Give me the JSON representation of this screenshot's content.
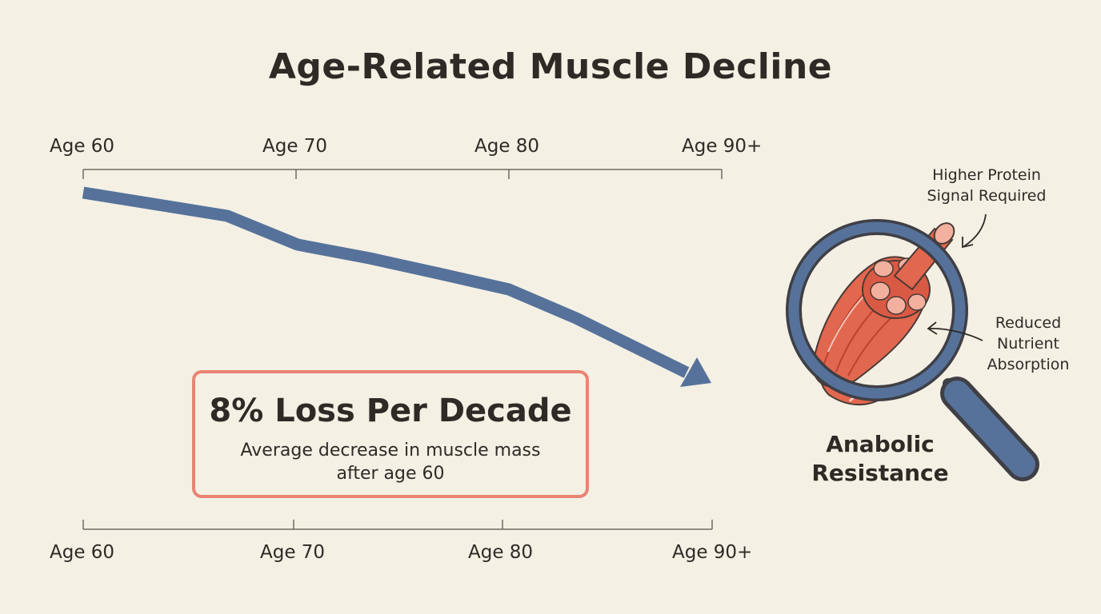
{
  "title": "Age-Related Muscle Decline",
  "top_axis": {
    "labels": [
      "Age 60",
      "Age 70",
      "Age 80",
      "Age 90+"
    ]
  },
  "bottom_axis": {
    "labels": [
      "Age 60",
      "Age 70",
      "Age 80",
      "Age 90+"
    ]
  },
  "trend": {
    "description_points": [
      {
        "age": 60,
        "level": 100
      },
      {
        "age": 67,
        "level": 96
      },
      {
        "age": 70,
        "level": 89
      },
      {
        "age": 74,
        "level": 86
      },
      {
        "age": 80,
        "level": 80
      },
      {
        "age": 83,
        "level": 73
      },
      {
        "age": 90,
        "level": 58
      }
    ],
    "color": "#56729a"
  },
  "callout": {
    "headline": "8% Loss Per Decade",
    "body": "Average decrease in muscle mass after age 60",
    "border_color": "#e98473"
  },
  "illustration": {
    "annotation_top": "Higher Protein Signal Required",
    "annotation_side": "Reduced Nutrient Absorption",
    "label": "Anabolic Resistance",
    "muscle_color": "#e2674f",
    "lens_color": "#56729a"
  }
}
